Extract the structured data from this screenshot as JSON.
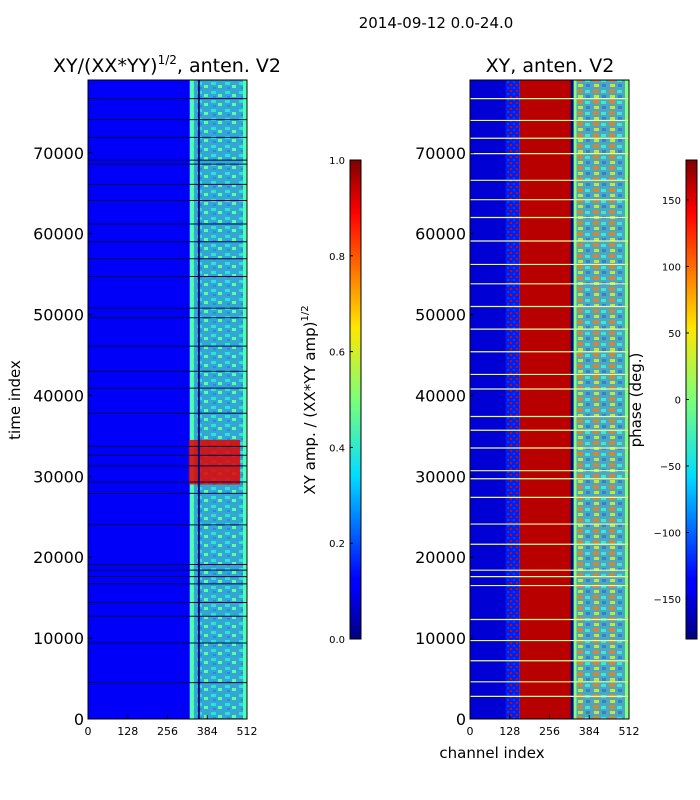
{
  "chart_data": [
    {
      "type": "heatmap",
      "suptitle": "2014-09-12 0.0-24.0",
      "title": "XY/(XX*YY)",
      "title_sup": "1/2",
      "title_suffix": ", anten. V2",
      "xlabel": "",
      "ylabel": "time index",
      "xticks": [
        0,
        128,
        256,
        384,
        512
      ],
      "yticks": [
        0,
        10000,
        20000,
        30000,
        40000,
        50000,
        60000,
        70000
      ],
      "xlim": [
        0,
        512
      ],
      "ylim": [
        0,
        79000
      ],
      "colormap": "jet",
      "colorbar": {
        "label": "XY amp. / (XX*YY amp)",
        "label_sup": "1/2",
        "ticks": [
          0.0,
          0.2,
          0.4,
          0.6,
          0.8,
          1.0
        ],
        "tick_labels": [
          "0.0",
          "0.2",
          "0.4",
          "0.6",
          "0.8",
          "1.0"
        ],
        "range": [
          0.0,
          1.0
        ]
      },
      "channel_bands": [
        {
          "range": [
            0,
            328
          ],
          "value": 0.12
        },
        {
          "range": [
            328,
            512
          ],
          "value": 0.45
        }
      ],
      "bright_band": {
        "time_range": [
          29000,
          34500
        ],
        "channel_range": [
          325,
          490
        ],
        "value": 0.9
      },
      "gaps_time": [
        4500,
        9400,
        12700,
        14400,
        16700,
        17600,
        18400,
        19100,
        24000,
        27900,
        29300,
        31300,
        32600,
        33700,
        37800,
        40900,
        43000,
        46100,
        49600,
        50800,
        54700,
        56900,
        59000,
        61200,
        64100,
        66100,
        68600,
        69100,
        71900,
        74100,
        76700
      ]
    },
    {
      "type": "heatmap",
      "title": "XY, anten. V2",
      "xlabel": "channel index",
      "ylabel": "",
      "xticks": [
        0,
        128,
        256,
        384,
        512
      ],
      "yticks": [
        0,
        10000,
        20000,
        30000,
        40000,
        50000,
        60000,
        70000
      ],
      "xlim": [
        0,
        512
      ],
      "ylim": [
        0,
        79000
      ],
      "colormap": "jet",
      "colorbar": {
        "label": "phase (deg.)",
        "ticks": [
          -150,
          -100,
          -50,
          0,
          50,
          100,
          150
        ],
        "tick_labels": [
          "−150",
          "−100",
          "−50",
          "0",
          "50",
          "100",
          "150"
        ],
        "range": [
          -180,
          180
        ]
      },
      "channel_bands": [
        {
          "range": [
            0,
            160
          ],
          "value": -150
        },
        {
          "range": [
            160,
            330
          ],
          "value": 160
        },
        {
          "range": [
            330,
            512
          ],
          "value": 0
        }
      ],
      "gaps_time": [
        2800,
        4600,
        7200,
        9700,
        12300,
        16500,
        17600,
        18400,
        21600,
        24100,
        27400,
        29700,
        30700,
        33500,
        35700,
        37400,
        40800,
        42600,
        45400,
        48200,
        51000,
        53800,
        56200,
        59100,
        62000,
        64200,
        66600,
        69900,
        71800,
        74000,
        76700
      ]
    }
  ]
}
